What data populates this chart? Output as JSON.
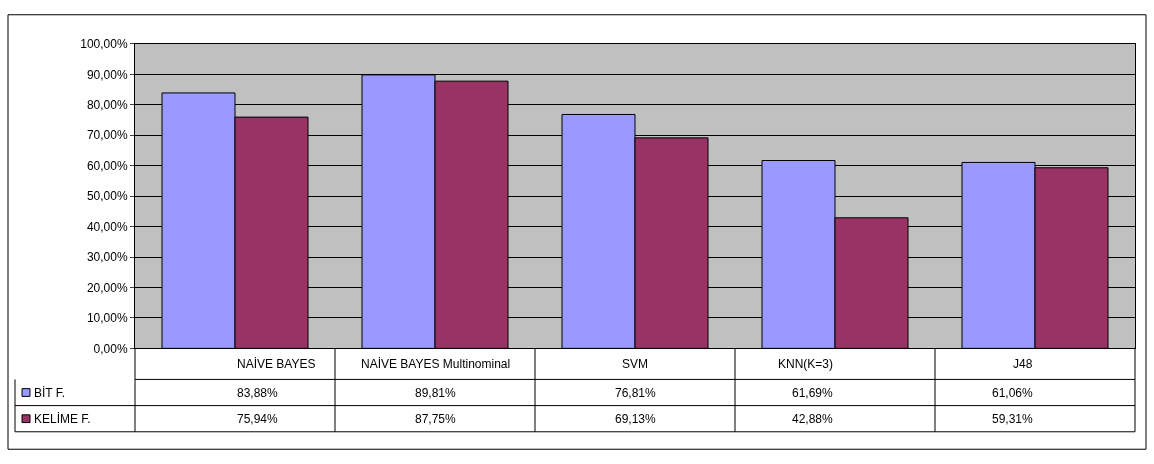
{
  "chart_data": {
    "type": "bar",
    "categories": [
      "NAİVE BAYES",
      "NAİVE BAYES Multinominal",
      "SVM",
      "KNN(K=3)",
      "J48"
    ],
    "series": [
      {
        "name": "BİT F.",
        "color": "#9999ff",
        "values": [
          83.88,
          89.81,
          76.81,
          61.69,
          61.06
        ],
        "value_labels": [
          "83,88%",
          "89,81%",
          "76,81%",
          "61,69%",
          "61,06%"
        ]
      },
      {
        "name": "KELİME F.",
        "color": "#993366",
        "values": [
          75.94,
          87.75,
          69.13,
          42.88,
          59.31
        ],
        "value_labels": [
          "75,94%",
          "87,75%",
          "69,13%",
          "42,88%",
          "59,31%"
        ]
      }
    ],
    "ylim": [
      0,
      100
    ],
    "yticks": [
      {
        "value": 0,
        "label": "0,00%"
      },
      {
        "value": 10,
        "label": "10,00%"
      },
      {
        "value": 20,
        "label": "20,00%"
      },
      {
        "value": 30,
        "label": "30,00%"
      },
      {
        "value": 40,
        "label": "40,00%"
      },
      {
        "value": 50,
        "label": "50,00%"
      },
      {
        "value": 60,
        "label": "60,00%"
      },
      {
        "value": 70,
        "label": "70,00%"
      },
      {
        "value": 80,
        "label": "80,00%"
      },
      {
        "value": 90,
        "label": "90,00%"
      },
      {
        "value": 100,
        "label": "100,00%"
      }
    ],
    "grid": "y",
    "legend": "bottom"
  }
}
